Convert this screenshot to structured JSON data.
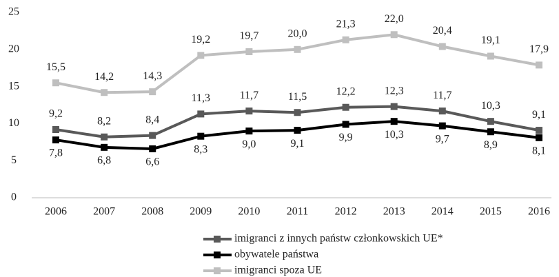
{
  "chart_data": {
    "type": "line",
    "categories": [
      "2006",
      "2007",
      "2008",
      "2009",
      "2010",
      "2011",
      "2012",
      "2013",
      "2014",
      "2015",
      "2016"
    ],
    "series": [
      {
        "name": "imigranci z innych państw członkowskich UE*",
        "color": "#595959",
        "values": [
          9.2,
          8.2,
          8.4,
          11.3,
          11.7,
          11.5,
          12.2,
          12.3,
          11.7,
          10.3,
          9.1
        ],
        "value_labels": [
          "9,2",
          "8,2",
          "8,4",
          "11,3",
          "11,7",
          "11,5",
          "12,2",
          "12,3",
          "11,7",
          "10,3",
          "9,1"
        ]
      },
      {
        "name": "obywatele państwa",
        "color": "#000000",
        "values": [
          7.8,
          6.8,
          6.6,
          8.3,
          9.0,
          9.1,
          9.9,
          10.3,
          9.7,
          8.9,
          8.1
        ],
        "value_labels": [
          "7,8",
          "6,8",
          "6,6",
          "8,3",
          "9,0",
          "9,1",
          "9,9",
          "10,3",
          "9,7",
          "8,9",
          "8,1"
        ]
      },
      {
        "name": "imigranci spoza UE",
        "color": "#bfbfbf",
        "values": [
          15.5,
          14.2,
          14.3,
          19.2,
          19.7,
          20.0,
          21.3,
          22.0,
          20.4,
          19.1,
          17.9
        ],
        "value_labels": [
          "15,5",
          "14,2",
          "14,3",
          "19,2",
          "19,7",
          "20,0",
          "21,3",
          "22,0",
          "20,4",
          "19,1",
          "17,9"
        ]
      }
    ],
    "ylim": [
      0,
      25
    ],
    "yticks": [
      0,
      5,
      10,
      15,
      20,
      25
    ],
    "grid": false,
    "legend": "bottom"
  }
}
